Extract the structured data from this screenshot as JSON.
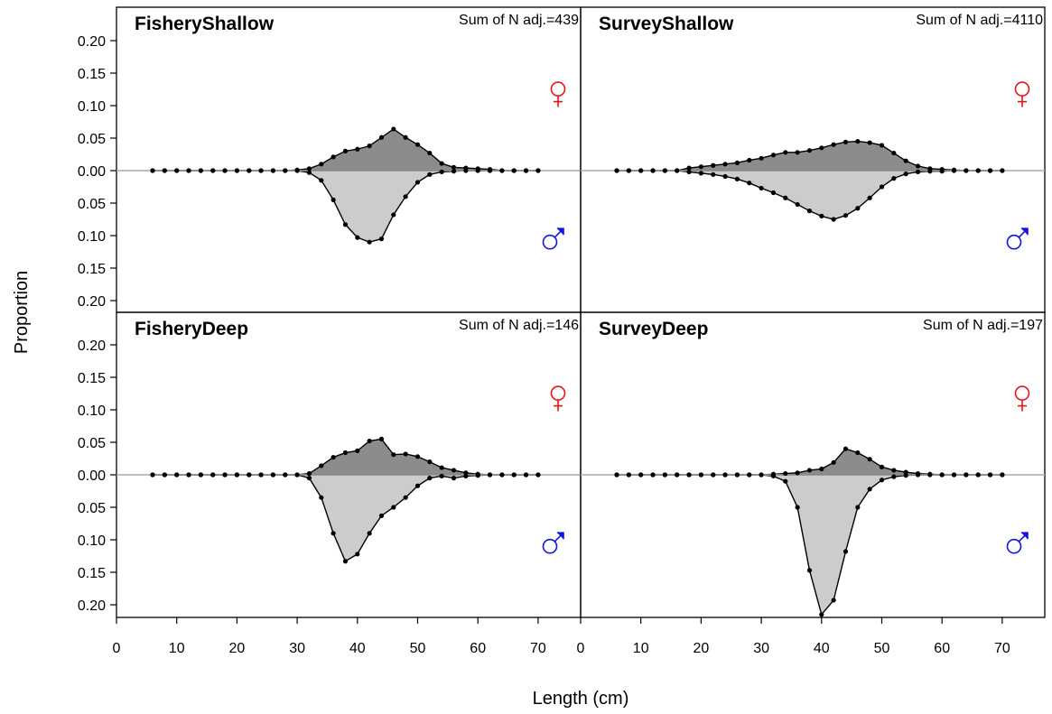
{
  "chart_data": {
    "type": "area",
    "xlabel": "Length (cm)",
    "ylabel": "Proportion",
    "xlim": [
      0,
      75
    ],
    "ylim": [
      -0.21,
      0.21
    ],
    "x_ticks": [
      0,
      10,
      20,
      30,
      40,
      50,
      60,
      70
    ],
    "y_tick_labels": [
      {
        "value": 0.2,
        "label": "0.20"
      },
      {
        "value": 0.15,
        "label": "0.15"
      },
      {
        "value": 0.1,
        "label": "0.10"
      },
      {
        "value": 0.05,
        "label": "0.05"
      },
      {
        "value": 0.0,
        "label": "0.00"
      },
      {
        "value": -0.05,
        "label": "0.05"
      },
      {
        "value": -0.1,
        "label": "0.10"
      },
      {
        "value": -0.15,
        "label": "0.15"
      },
      {
        "value": -0.2,
        "label": "0.20"
      }
    ],
    "legend": {
      "female_symbol": "♀",
      "male_symbol": "♂",
      "female_color": "#e8141a",
      "male_color": "#1414e0"
    },
    "colors": {
      "female_fill": "#8c8c8c",
      "male_fill": "#cccccc"
    },
    "x": [
      6,
      8,
      10,
      12,
      14,
      16,
      18,
      20,
      22,
      24,
      26,
      28,
      30,
      32,
      34,
      36,
      38,
      40,
      42,
      44,
      46,
      48,
      50,
      52,
      54,
      56,
      58,
      60,
      62,
      64,
      66,
      68,
      70
    ],
    "panels": [
      {
        "title": "FisheryShallow",
        "n_adj": "Sum of N adj.=439",
        "female": [
          0,
          0,
          0,
          0,
          0,
          0,
          0,
          0,
          0,
          0,
          0,
          0,
          0.001,
          0.003,
          0.01,
          0.021,
          0.03,
          0.033,
          0.038,
          0.051,
          0.064,
          0.051,
          0.04,
          0.027,
          0.011,
          0.005,
          0.004,
          0.003,
          0.002,
          0,
          0,
          0,
          0
        ],
        "male": [
          0,
          0,
          0,
          0,
          0,
          0,
          0,
          0,
          0,
          0,
          0,
          0,
          0,
          0.003,
          0.015,
          0.045,
          0.083,
          0.103,
          0.11,
          0.105,
          0.068,
          0.04,
          0.018,
          0.006,
          0.002,
          0.001,
          0,
          0,
          0,
          0,
          0,
          0,
          0
        ]
      },
      {
        "title": "SurveyShallow",
        "n_adj": "Sum of N adj.=4110",
        "female": [
          0,
          0,
          0,
          0,
          0,
          0,
          0.004,
          0.006,
          0.008,
          0.01,
          0.012,
          0.016,
          0.019,
          0.024,
          0.028,
          0.028,
          0.031,
          0.035,
          0.04,
          0.044,
          0.045,
          0.043,
          0.039,
          0.027,
          0.015,
          0.007,
          0.003,
          0.002,
          0.001,
          0,
          0,
          0,
          0
        ],
        "male": [
          0,
          0,
          0,
          0,
          0,
          0,
          0.002,
          0.004,
          0.006,
          0.009,
          0.013,
          0.019,
          0.027,
          0.034,
          0.042,
          0.052,
          0.062,
          0.07,
          0.075,
          0.069,
          0.058,
          0.042,
          0.025,
          0.012,
          0.005,
          0.002,
          0.001,
          0.001,
          0,
          0,
          0,
          0,
          0
        ]
      },
      {
        "title": "FisheryDeep",
        "n_adj": "Sum of N adj.=146",
        "female": [
          0,
          0,
          0,
          0,
          0,
          0,
          0,
          0,
          0,
          0,
          0,
          0,
          0,
          0.002,
          0.014,
          0.027,
          0.034,
          0.037,
          0.052,
          0.055,
          0.031,
          0.032,
          0.028,
          0.02,
          0.011,
          0.007,
          0.003,
          0.001,
          0,
          0,
          0,
          0,
          0
        ],
        "male": [
          0,
          0,
          0,
          0,
          0,
          0,
          0,
          0,
          0,
          0,
          0,
          0,
          0,
          0.005,
          0.035,
          0.09,
          0.133,
          0.122,
          0.09,
          0.063,
          0.05,
          0.035,
          0.017,
          0.005,
          0.002,
          0.005,
          0.002,
          0.001,
          0,
          0,
          0,
          0,
          0
        ]
      },
      {
        "title": "SurveyDeep",
        "n_adj": "Sum of N adj.=197",
        "female": [
          0,
          0,
          0,
          0,
          0,
          0,
          0,
          0,
          0,
          0,
          0,
          0,
          0,
          0.001,
          0.002,
          0.003,
          0.007,
          0.009,
          0.019,
          0.04,
          0.034,
          0.024,
          0.012,
          0.007,
          0.004,
          0.002,
          0.001,
          0,
          0,
          0,
          0,
          0,
          0
        ],
        "male": [
          0,
          0,
          0,
          0,
          0,
          0,
          0,
          0,
          0,
          0,
          0,
          0,
          0,
          0.002,
          0.01,
          0.05,
          0.147,
          0.215,
          0.193,
          0.118,
          0.05,
          0.022,
          0.008,
          0.003,
          0.001,
          0,
          0,
          0,
          0,
          0,
          0,
          0,
          0
        ]
      }
    ]
  }
}
